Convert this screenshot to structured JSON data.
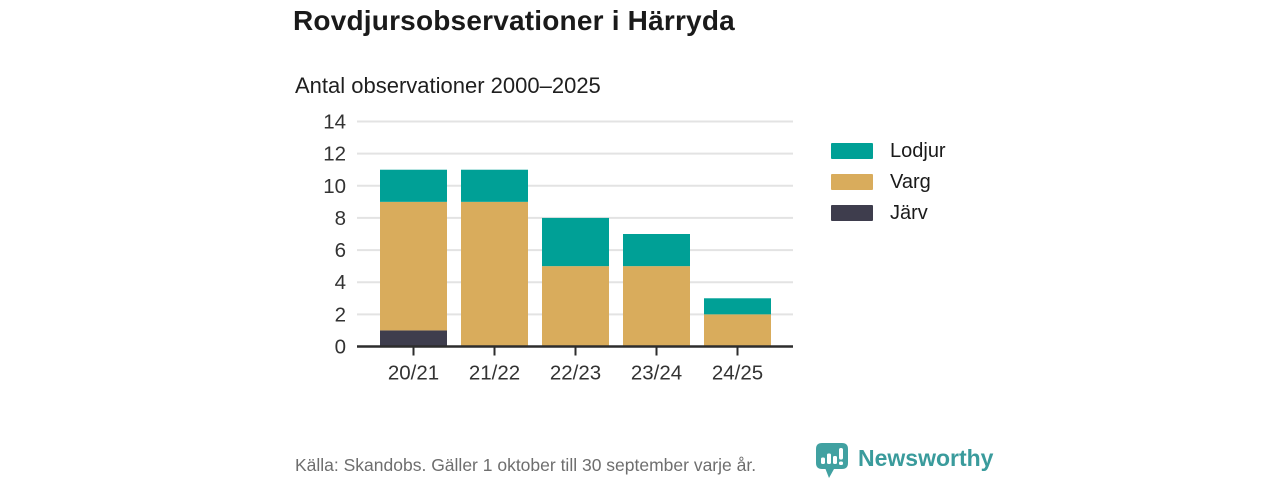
{
  "header": {
    "title": "Rovdjursobservationer i Härryda",
    "subtitle": "Antal observationer 2000–2025"
  },
  "chart_data": {
    "type": "bar",
    "stacked": true,
    "title": "Rovdjursobservationer i Härryda",
    "subtitle": "Antal observationer 2000–2025",
    "categories": [
      "20/21",
      "21/22",
      "22/23",
      "23/24",
      "24/25"
    ],
    "series": [
      {
        "name": "Lodjur",
        "color": "#00A096",
        "values": [
          2,
          2,
          3,
          2,
          1
        ]
      },
      {
        "name": "Varg",
        "color": "#D9AC5C",
        "values": [
          8,
          9,
          5,
          5,
          2
        ]
      },
      {
        "name": "Järv",
        "color": "#3E3D4D",
        "values": [
          1,
          0,
          0,
          0,
          0
        ]
      }
    ],
    "stack_order_bottom_to_top": [
      "Järv",
      "Varg",
      "Lodjur"
    ],
    "totals": [
      11,
      11,
      8,
      7,
      3
    ],
    "xlabel": "",
    "ylabel": "",
    "ylim": [
      0,
      14
    ],
    "yticks": [
      0,
      2,
      4,
      6,
      8,
      10,
      12,
      14
    ],
    "grid": true,
    "legend_position": "right"
  },
  "footer": {
    "source": "Källa: Skandobs. Gäller 1 oktober till 30 september varje år.",
    "brand": "Newsworthy"
  },
  "colors": {
    "teal": "#00A096",
    "gold": "#D9AC5C",
    "dark": "#3E3D4D",
    "grid": "#E3E3E3",
    "axis": "#2D2D2D",
    "tick_label": "#333333",
    "muted": "#6E6E6E",
    "brand_text": "#3A9B9C",
    "brand_bubble": "#41A1A1"
  }
}
